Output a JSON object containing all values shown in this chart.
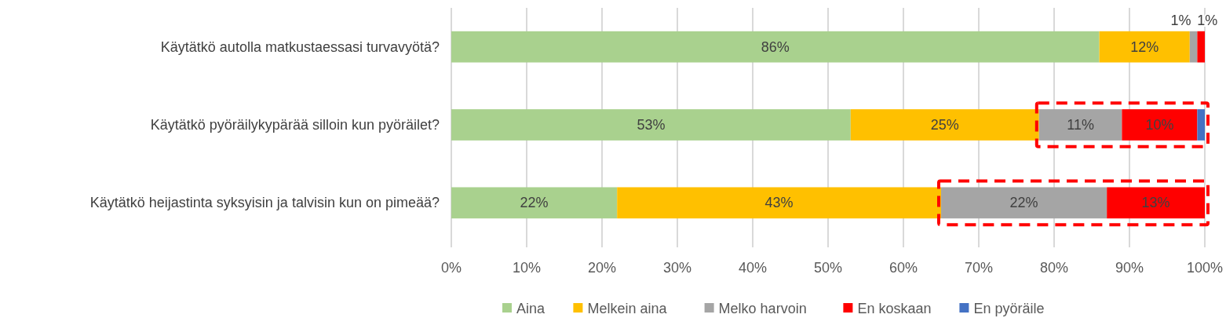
{
  "chart_data": {
    "type": "bar",
    "orientation": "horizontal",
    "stacked": true,
    "categories": [
      "Käytätkö autolla matkustaessasi turvavyötä?",
      "Käytätkö pyöräilykypärää silloin kun pyöräilet?",
      "Käytätkö heijastinta syksyisin ja talvisin kun on pimeää?"
    ],
    "series": [
      {
        "name": "Aina",
        "color": "#a9d18e",
        "values": [
          86,
          53,
          22
        ],
        "value_labels": [
          "86%",
          "53%",
          "22%"
        ]
      },
      {
        "name": "Melkein aina",
        "color": "#ffc000",
        "values": [
          12,
          25,
          43
        ],
        "value_labels": [
          "12%",
          "25%",
          "43%"
        ]
      },
      {
        "name": "Melko harvoin",
        "color": "#a5a5a5",
        "values": [
          1,
          11,
          22
        ],
        "value_labels": [
          "1%",
          "11%",
          "22%"
        ]
      },
      {
        "name": "En koskaan",
        "color": "#ff0000",
        "values": [
          1,
          10,
          13
        ],
        "value_labels": [
          "1%",
          "10%",
          "13%"
        ]
      },
      {
        "name": "En pyöräile",
        "color": "#4472c4",
        "values": [
          0,
          1,
          0
        ],
        "value_labels": [
          null,
          null,
          null
        ]
      }
    ],
    "xlim": [
      0,
      100
    ],
    "xticks": [
      {
        "value": 0,
        "label": "0%"
      },
      {
        "value": 10,
        "label": "10%"
      },
      {
        "value": 20,
        "label": "20%"
      },
      {
        "value": 30,
        "label": "30%"
      },
      {
        "value": 40,
        "label": "40%"
      },
      {
        "value": 50,
        "label": "50%"
      },
      {
        "value": 60,
        "label": "60%"
      },
      {
        "value": 70,
        "label": "70%"
      },
      {
        "value": 80,
        "label": "80%"
      },
      {
        "value": 90,
        "label": "90%"
      },
      {
        "value": 100,
        "label": "100%"
      }
    ],
    "grid": "x",
    "legend": "bottom"
  }
}
